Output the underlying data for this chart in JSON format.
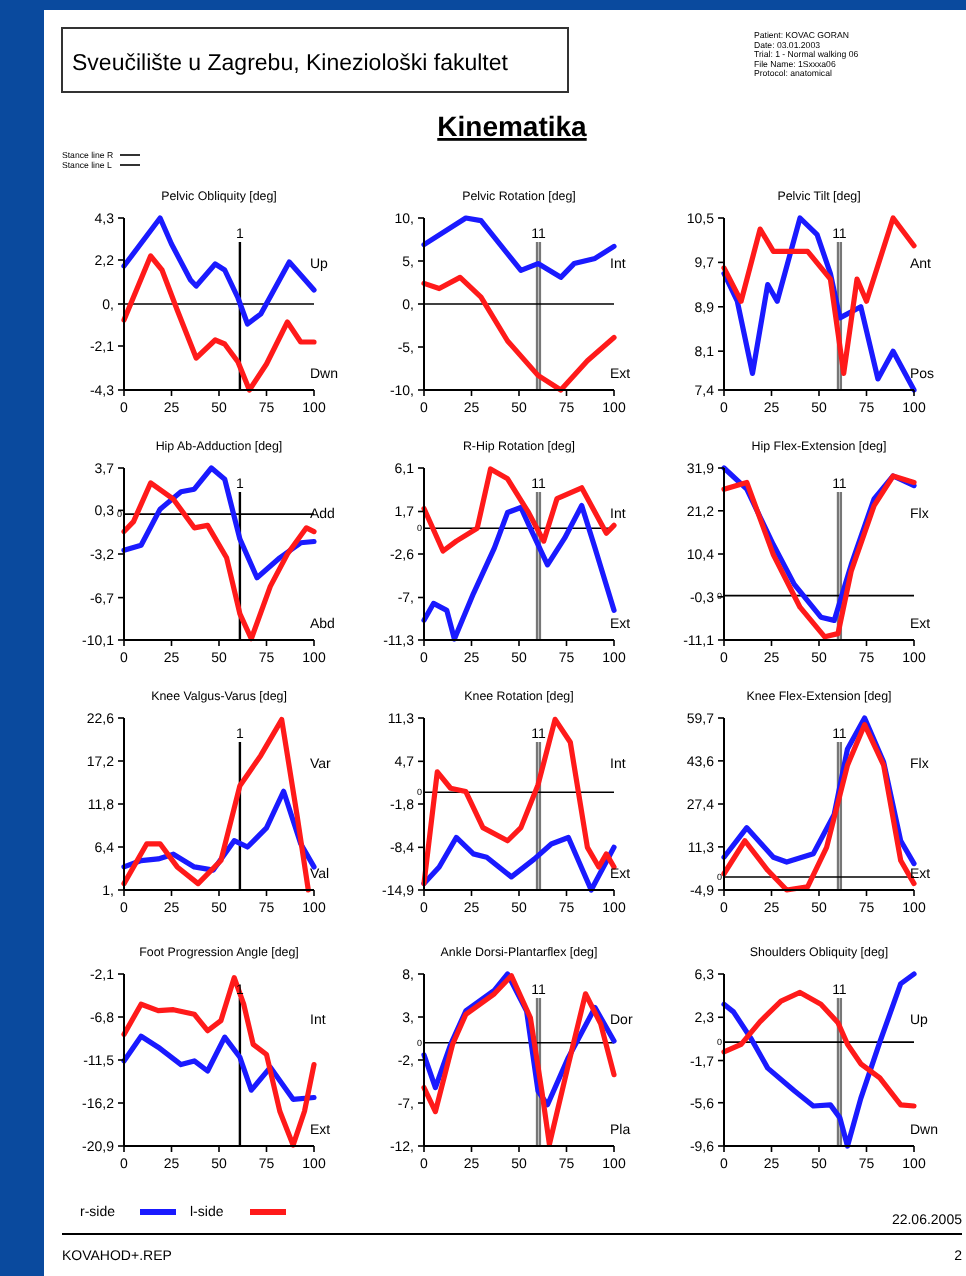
{
  "chart_data": [
    {
      "type": "other",
      "title": "Kinematika",
      "annotations": [
        "Sveučilište u Zagrebu, Kineziološki fakultet",
        "Patient: KOVAC GORAN",
        "Date: 03.01.2003",
        "Trial: 1 - Normal walking 06",
        "File Name: 1Sxxxa06",
        "Protocol: anatomical",
        "Stance line R",
        "Stance line L",
        "22.06.2005",
        "KOVAHOD+.REP",
        "2"
      ]
    },
    {
      "type": "line",
      "title": "Pelvic Obliquity [deg]",
      "annotations": [
        "Up",
        "Dwn",
        "1"
      ],
      "xlim": [
        0,
        100
      ],
      "xticks": [
        0,
        25,
        50,
        75,
        100
      ],
      "ylim": [
        -4.3,
        4.3
      ],
      "yticks": [
        {
          "value": -4.3,
          "label": "-4,3"
        },
        {
          "value": -2.1,
          "label": "-2,1"
        },
        {
          "value": 0,
          "label": "0,"
        },
        {
          "value": 2.2,
          "label": "2,2"
        },
        {
          "value": 4.3,
          "label": "4,3"
        }
      ],
      "ref_lines": [
        {
          "axis": "x",
          "value": 61
        },
        {
          "axis": "y",
          "value": 0
        }
      ],
      "series": [
        {
          "color": "#1a1aff",
          "x": [
            0,
            19,
            25,
            35,
            38,
            48,
            53,
            60,
            65,
            72,
            87,
            100
          ],
          "values": [
            1.9,
            4.3,
            3.0,
            1.2,
            0.9,
            2.0,
            1.7,
            0.3,
            -1.0,
            -0.5,
            2.1,
            0.7
          ]
        },
        {
          "color": "#ff1a1a",
          "x": [
            0,
            14,
            20,
            28,
            38,
            48,
            53,
            60,
            66,
            75,
            86,
            93,
            100
          ],
          "values": [
            -0.8,
            2.4,
            1.7,
            -0.3,
            -2.7,
            -1.8,
            -2.0,
            -2.9,
            -4.3,
            -3.0,
            -0.9,
            -1.9,
            -1.9
          ]
        }
      ]
    },
    {
      "type": "line",
      "title": "Pelvic Rotation [deg]",
      "annotations": [
        "Int",
        "Ext",
        "11"
      ],
      "xlim": [
        0,
        100
      ],
      "xticks": [
        0,
        25,
        50,
        75,
        100
      ],
      "ylim": [
        -10,
        10
      ],
      "yticks": [
        {
          "value": -10,
          "label": "-10,"
        },
        {
          "value": -5,
          "label": "-5,"
        },
        {
          "value": 0,
          "label": "0,"
        },
        {
          "value": 5,
          "label": "5,"
        },
        {
          "value": 10,
          "label": "10,"
        }
      ],
      "ref_lines": [
        {
          "axis": "x",
          "value": 59.5
        },
        {
          "axis": "x",
          "value": 61
        },
        {
          "axis": "y",
          "value": 0
        }
      ],
      "series": [
        {
          "color": "#1a1aff",
          "x": [
            0,
            22,
            30,
            51,
            60,
            72,
            79,
            90,
            100
          ],
          "values": [
            6.9,
            10,
            9.7,
            3.9,
            4.7,
            3.1,
            4.7,
            5.3,
            6.7
          ]
        },
        {
          "color": "#ff1a1a",
          "x": [
            0,
            8,
            19,
            30,
            44,
            60,
            72,
            86,
            100
          ],
          "values": [
            2.4,
            1.8,
            3.1,
            0.8,
            -4.3,
            -8.3,
            -10,
            -6.6,
            -3.9
          ]
        }
      ]
    },
    {
      "type": "line",
      "title": "Pelvic Tilt [deg]",
      "annotations": [
        "Ant",
        "Pos",
        "11"
      ],
      "xlim": [
        0,
        100
      ],
      "xticks": [
        0,
        25,
        50,
        75,
        100
      ],
      "ylim": [
        7.4,
        10.5
      ],
      "yticks": [
        {
          "value": 7.4,
          "label": "7,4"
        },
        {
          "value": 8.1,
          "label": "8,1"
        },
        {
          "value": 8.9,
          "label": "8,9"
        },
        {
          "value": 9.7,
          "label": "9,7"
        },
        {
          "value": 10.5,
          "label": "10,5"
        }
      ],
      "ref_lines": [
        {
          "axis": "x",
          "value": 60
        },
        {
          "axis": "x",
          "value": 61.5
        }
      ],
      "series": [
        {
          "color": "#1a1aff",
          "x": [
            0,
            7,
            15,
            23,
            28,
            40,
            49,
            56,
            61,
            72,
            81,
            89,
            100
          ],
          "values": [
            9.5,
            9.0,
            7.7,
            9.3,
            9.0,
            10.5,
            10.2,
            9.5,
            8.7,
            8.9,
            7.6,
            8.1,
            7.4
          ]
        },
        {
          "color": "#ff1a1a",
          "x": [
            0,
            9,
            19,
            26,
            44,
            56,
            63,
            70,
            75,
            89,
            100
          ],
          "values": [
            9.6,
            9.0,
            10.3,
            9.9,
            9.9,
            9.4,
            7.7,
            9.4,
            9.0,
            10.5,
            10.0
          ]
        }
      ]
    },
    {
      "type": "line",
      "title": "Hip Ab-Adduction [deg]",
      "annotations": [
        "Add",
        "Abd",
        "1"
      ],
      "xlim": [
        0,
        100
      ],
      "xticks": [
        0,
        25,
        50,
        75,
        100
      ],
      "ylim": [
        -10.1,
        3.7
      ],
      "yticks": [
        {
          "value": -10.1,
          "label": "-10,1"
        },
        {
          "value": -6.7,
          "label": "-6,7"
        },
        {
          "value": -3.2,
          "label": "-3,2"
        },
        {
          "value": 0.3,
          "label": "0,3"
        },
        {
          "value": 3.7,
          "label": "3,7"
        }
      ],
      "ref_lines": [
        {
          "axis": "x",
          "value": 61
        },
        {
          "axis": "y",
          "value": 0,
          "label": "0"
        }
      ],
      "series": [
        {
          "color": "#1a1aff",
          "x": [
            0,
            9,
            19,
            30,
            37,
            46,
            53,
            61,
            70,
            82,
            93,
            100
          ],
          "values": [
            -2.9,
            -2.5,
            0.4,
            1.8,
            2.0,
            3.7,
            2.8,
            -2.0,
            -5.1,
            -3.5,
            -2.3,
            -2.2
          ]
        },
        {
          "color": "#ff1a1a",
          "x": [
            0,
            5,
            14,
            26,
            37,
            44,
            54,
            61,
            67,
            77,
            86,
            96,
            100
          ],
          "values": [
            -1.4,
            -0.6,
            2.5,
            1.2,
            -1.1,
            -0.9,
            -3.5,
            -8.0,
            -10.0,
            -5.8,
            -3.2,
            -1.1,
            -1.4
          ]
        }
      ]
    },
    {
      "type": "line",
      "title": "R-Hip Rotation [deg]",
      "annotations": [
        "Int",
        "Ext",
        "11"
      ],
      "xlim": [
        0,
        100
      ],
      "xticks": [
        0,
        25,
        50,
        75,
        100
      ],
      "ylim": [
        -11.3,
        6.1
      ],
      "yticks": [
        {
          "value": -11.3,
          "label": "-11,3"
        },
        {
          "value": -7,
          "label": "-7,"
        },
        {
          "value": -2.6,
          "label": "-2,6"
        },
        {
          "value": 1.7,
          "label": "1,7"
        },
        {
          "value": 6.1,
          "label": "6,1"
        }
      ],
      "ref_lines": [
        {
          "axis": "x",
          "value": 59.5
        },
        {
          "axis": "x",
          "value": 61
        },
        {
          "axis": "y",
          "value": 0,
          "label": "0"
        }
      ],
      "series": [
        {
          "color": "#1a1aff",
          "x": [
            0,
            5,
            12,
            16,
            26,
            37,
            44,
            51,
            56,
            65,
            74,
            83,
            90,
            100
          ],
          "values": [
            -9.3,
            -7.6,
            -8.3,
            -11.2,
            -6.6,
            -2.0,
            1.6,
            2.1,
            0,
            -3.7,
            -1.0,
            2.3,
            -2.0,
            -8.3
          ]
        },
        {
          "color": "#ff1a1a",
          "x": [
            0,
            10,
            17,
            28,
            35,
            44,
            55,
            63,
            70,
            83,
            96,
            100
          ],
          "values": [
            2.0,
            -2.3,
            -1.3,
            0,
            6.0,
            5.0,
            1.6,
            -1.3,
            3.0,
            4.1,
            -0.5,
            0.3
          ]
        }
      ]
    },
    {
      "type": "line",
      "title": "Hip Flex-Extension [deg]",
      "annotations": [
        "Flx",
        "Ext",
        "11"
      ],
      "xlim": [
        0,
        100
      ],
      "xticks": [
        0,
        25,
        50,
        75,
        100
      ],
      "ylim": [
        -11.1,
        31.9
      ],
      "yticks": [
        {
          "value": -11.1,
          "label": "-11,1"
        },
        {
          "value": -0.3,
          "label": "-0,3"
        },
        {
          "value": 10.4,
          "label": "10,4"
        },
        {
          "value": 21.2,
          "label": "21,2"
        },
        {
          "value": 31.9,
          "label": "31,9"
        }
      ],
      "ref_lines": [
        {
          "axis": "x",
          "value": 60
        },
        {
          "axis": "x",
          "value": 61.5
        },
        {
          "axis": "y",
          "value": 0,
          "label": "0"
        }
      ],
      "series": [
        {
          "color": "#1a1aff",
          "x": [
            0,
            12,
            26,
            37,
            51,
            58,
            67,
            79,
            89,
            100
          ],
          "values": [
            31.9,
            26.6,
            12.7,
            2.8,
            -5.4,
            -6.2,
            7.8,
            24.2,
            29.9,
            27.5
          ]
        },
        {
          "color": "#ff1a1a",
          "x": [
            0,
            12,
            26,
            40,
            53,
            60,
            67,
            79,
            89,
            100
          ],
          "values": [
            26.6,
            28.3,
            10.2,
            -2.9,
            -10.3,
            -9.5,
            6.2,
            22.5,
            29.9,
            28.3
          ]
        }
      ]
    },
    {
      "type": "line",
      "title": "Knee Valgus-Varus [deg]",
      "annotations": [
        "Var",
        "Val",
        "1"
      ],
      "xlim": [
        0,
        100
      ],
      "xticks": [
        0,
        25,
        50,
        75,
        100
      ],
      "ylim": [
        1,
        22.6
      ],
      "yticks": [
        {
          "value": 1,
          "label": "1,"
        },
        {
          "value": 6.4,
          "label": "6,4"
        },
        {
          "value": 11.8,
          "label": "11,8"
        },
        {
          "value": 17.2,
          "label": "17,2"
        },
        {
          "value": 22.6,
          "label": "22,6"
        }
      ],
      "ref_lines": [
        {
          "axis": "x",
          "value": 61
        }
      ],
      "series": [
        {
          "color": "#1a1aff",
          "x": [
            0,
            9,
            18,
            26,
            37,
            47,
            58,
            65,
            75,
            84,
            93,
            100
          ],
          "values": [
            3.9,
            4.7,
            4.9,
            5.5,
            3.9,
            3.5,
            7.2,
            6.4,
            8.8,
            13.4,
            6.8,
            3.9
          ]
        },
        {
          "color": "#ff1a1a",
          "x": [
            0,
            12,
            19,
            28,
            39,
            51,
            61,
            72,
            83,
            91,
            97
          ],
          "values": [
            1.8,
            6.8,
            6.8,
            3.9,
            1.8,
            4.7,
            14.1,
            17.9,
            22.4,
            10.5,
            1
          ]
        }
      ]
    },
    {
      "type": "line",
      "title": "Knee Rotation [deg]",
      "annotations": [
        "Int",
        "Ext",
        "11"
      ],
      "xlim": [
        0,
        100
      ],
      "xticks": [
        0,
        25,
        50,
        75,
        100
      ],
      "ylim": [
        -14.9,
        11.3
      ],
      "yticks": [
        {
          "value": -14.9,
          "label": "-14,9"
        },
        {
          "value": -8.4,
          "label": "-8,4"
        },
        {
          "value": -1.8,
          "label": "-1,8"
        },
        {
          "value": 4.7,
          "label": "4,7"
        },
        {
          "value": 11.3,
          "label": "11,3"
        }
      ],
      "ref_lines": [
        {
          "axis": "x",
          "value": 59.5
        },
        {
          "axis": "x",
          "value": 61
        },
        {
          "axis": "y",
          "value": 0,
          "label": "0"
        }
      ],
      "series": [
        {
          "color": "#1a1aff",
          "x": [
            0,
            8,
            17,
            26,
            33,
            46,
            58,
            67,
            76,
            88,
            100
          ],
          "values": [
            -13.9,
            -11.4,
            -6.9,
            -9.4,
            -9.9,
            -12.9,
            -10.2,
            -7.9,
            -6.9,
            -14.9,
            -8.4
          ]
        },
        {
          "color": "#ff1a1a",
          "x": [
            0,
            7,
            14,
            22,
            31,
            44,
            51,
            60,
            69,
            77,
            86,
            92,
            96,
            100
          ],
          "values": [
            -13.9,
            3.1,
            0.6,
            0.1,
            -5.4,
            -7.4,
            -5.4,
            1.1,
            11.1,
            7.6,
            -8.4,
            -11.4,
            -9.4,
            -11.4
          ]
        }
      ]
    },
    {
      "type": "line",
      "title": "Knee Flex-Extension [deg]",
      "annotations": [
        "Flx",
        "Ext",
        "11"
      ],
      "xlim": [
        0,
        100
      ],
      "xticks": [
        0,
        25,
        50,
        75,
        100
      ],
      "ylim": [
        -4.9,
        59.7
      ],
      "yticks": [
        {
          "value": -4.9,
          "label": "-4,9"
        },
        {
          "value": 11.3,
          "label": "11,3"
        },
        {
          "value": 27.4,
          "label": "27,4"
        },
        {
          "value": 43.6,
          "label": "43,6"
        },
        {
          "value": 59.7,
          "label": "59,7"
        }
      ],
      "ref_lines": [
        {
          "axis": "x",
          "value": 60
        },
        {
          "axis": "x",
          "value": 61.5
        },
        {
          "axis": "y",
          "value": 0,
          "label": "0"
        }
      ],
      "series": [
        {
          "color": "#1a1aff",
          "x": [
            0,
            12,
            26,
            33,
            47,
            58,
            65,
            74,
            84,
            93,
            100
          ],
          "values": [
            7.4,
            18.5,
            7.4,
            5.6,
            8.7,
            23.5,
            48.1,
            59.7,
            43.2,
            13.6,
            5.0
          ]
        },
        {
          "color": "#ff1a1a",
          "x": [
            0,
            11,
            23,
            33,
            44,
            54,
            65,
            74,
            84,
            93,
            100
          ],
          "values": [
            1.2,
            13.6,
            2.5,
            -4.9,
            -3.7,
            11.1,
            42.0,
            57.2,
            42.0,
            6.2,
            -2.5
          ]
        }
      ]
    },
    {
      "type": "line",
      "title": "Foot Progression Angle [deg]",
      "annotations": [
        "Int",
        "Ext",
        "1"
      ],
      "legend": "bottom",
      "xlim": [
        0,
        100
      ],
      "xticks": [
        0,
        25,
        50,
        75,
        100
      ],
      "ylim": [
        -20.9,
        -2.1
      ],
      "yticks": [
        {
          "value": -20.9,
          "label": "-20,9"
        },
        {
          "value": -16.2,
          "label": "-16,2"
        },
        {
          "value": -11.5,
          "label": "-11,5"
        },
        {
          "value": -6.8,
          "label": "-6,8"
        },
        {
          "value": -2.1,
          "label": "-2,1"
        }
      ],
      "ref_lines": [
        {
          "axis": "x",
          "value": 61
        }
      ],
      "series": [
        {
          "name": "r-side",
          "color": "#1a1aff",
          "x": [
            0,
            9,
            18,
            30,
            37,
            44,
            53,
            61,
            67,
            77,
            89,
            100
          ],
          "values": [
            -11.6,
            -8.9,
            -10.1,
            -12.0,
            -11.6,
            -12.7,
            -9.0,
            -11.2,
            -14.8,
            -12.3,
            -15.8,
            -15.6
          ]
        },
        {
          "name": "l-side",
          "color": "#ff1a1a",
          "x": [
            0,
            9,
            18,
            26,
            37,
            44,
            51,
            58,
            63,
            68,
            75,
            82,
            89,
            95,
            100
          ],
          "values": [
            -8.7,
            -5.4,
            -6.1,
            -6.0,
            -6.5,
            -8.3,
            -7.2,
            -2.5,
            -5.4,
            -9.8,
            -10.9,
            -17.1,
            -20.8,
            -17.1,
            -12.0
          ]
        }
      ]
    },
    {
      "type": "line",
      "title": "Ankle Dorsi-Plantarflex [deg]",
      "annotations": [
        "Dor",
        "Pla",
        "11"
      ],
      "xlim": [
        0,
        100
      ],
      "xticks": [
        0,
        25,
        50,
        75,
        100
      ],
      "ylim": [
        -12,
        8
      ],
      "yticks": [
        {
          "value": -12,
          "label": "-12,"
        },
        {
          "value": -7,
          "label": "-7,"
        },
        {
          "value": -2,
          "label": "-2,"
        },
        {
          "value": 3,
          "label": "3,"
        },
        {
          "value": 8,
          "label": "8,"
        }
      ],
      "ref_lines": [
        {
          "axis": "x",
          "value": 59.5
        },
        {
          "axis": "x",
          "value": 61
        },
        {
          "axis": "y",
          "value": 0,
          "label": "0"
        }
      ],
      "series": [
        {
          "color": "#1a1aff",
          "x": [
            0,
            6,
            14,
            22,
            37,
            44,
            54,
            60,
            65,
            76,
            90,
            100
          ],
          "values": [
            -1.4,
            -5.2,
            -0.2,
            3.7,
            6.1,
            8,
            3.7,
            -5.6,
            -7.2,
            -1.7,
            4.1,
            0.2
          ]
        },
        {
          "color": "#ff1a1a",
          "x": [
            0,
            6,
            15,
            22,
            37,
            46,
            56,
            62,
            66,
            76,
            85,
            93,
            100
          ],
          "values": [
            -5.2,
            -8.0,
            -0.2,
            3.3,
            5.7,
            7.8,
            2.9,
            -5.6,
            -11.8,
            -2.5,
            5.7,
            2.2,
            -3.7
          ]
        }
      ]
    },
    {
      "type": "line",
      "title": "Shoulders Obliquity [deg]",
      "annotations": [
        "Up",
        "Dwn",
        "11"
      ],
      "xlim": [
        0,
        100
      ],
      "xticks": [
        0,
        25,
        50,
        75,
        100
      ],
      "ylim": [
        -9.6,
        6.3
      ],
      "yticks": [
        {
          "value": -9.6,
          "label": "-9,6"
        },
        {
          "value": -5.6,
          "label": "-5,6"
        },
        {
          "value": -1.7,
          "label": "-1,7"
        },
        {
          "value": 2.3,
          "label": "2,3"
        },
        {
          "value": 6.3,
          "label": "6,3"
        }
      ],
      "ref_lines": [
        {
          "axis": "x",
          "value": 60
        },
        {
          "axis": "x",
          "value": 61.5
        },
        {
          "axis": "y",
          "value": 0,
          "label": "0"
        }
      ],
      "series": [
        {
          "color": "#1a1aff",
          "x": [
            0,
            5,
            14,
            23,
            37,
            47,
            56,
            61,
            65,
            72,
            82,
            93,
            100
          ],
          "values": [
            3.5,
            2.8,
            0.4,
            -2.4,
            -4.5,
            -5.9,
            -5.8,
            -7.0,
            -9.6,
            -5.2,
            0,
            5.4,
            6.3
          ]
        },
        {
          "color": "#ff1a1a",
          "x": [
            0,
            9,
            19,
            30,
            40,
            51,
            60,
            65,
            72,
            82,
            93,
            100
          ],
          "values": [
            -0.9,
            -0.2,
            1.9,
            3.8,
            4.6,
            3.5,
            1.8,
            -0.2,
            -2.0,
            -3.3,
            -5.8,
            -5.9
          ]
        }
      ]
    }
  ]
}
